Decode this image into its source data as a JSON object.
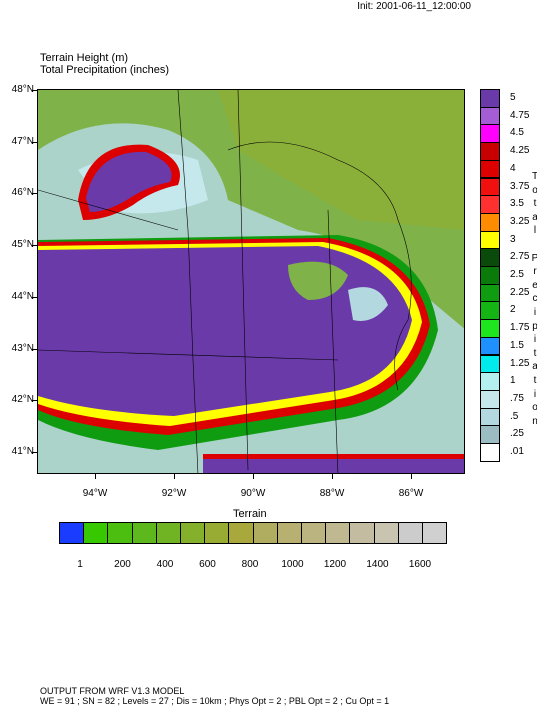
{
  "init_label": "Init: 2001-06-11_12:00:00",
  "titles": {
    "line1": "Terrain Height   (m)",
    "line2": "Total Precipitation (inches)"
  },
  "map": {
    "lat_labels": [
      "48°N",
      "47°N",
      "46°N",
      "45°N",
      "44°N",
      "43°N",
      "42°N",
      "41°N"
    ],
    "lon_labels": [
      "94°W",
      "92°W",
      "90°W",
      "88°W",
      "86°W"
    ]
  },
  "precip_legend": {
    "title": "Total Precipitation",
    "levels": [
      {
        "label": "5",
        "color": "#6a3aa8"
      },
      {
        "label": "4.75",
        "color": "#a45dd4"
      },
      {
        "label": "4.5",
        "color": "#ff00ff"
      },
      {
        "label": "4.25",
        "color": "#c80000"
      },
      {
        "label": "4",
        "color": "#dc0000"
      },
      {
        "label": "3.75",
        "color": "#f01010"
      },
      {
        "label": "3.5",
        "color": "#ff3030"
      },
      {
        "label": "3.25",
        "color": "#ff8c00"
      },
      {
        "label": "3",
        "color": "#ffff00"
      },
      {
        "label": "2.75",
        "color": "#0a4a0a"
      },
      {
        "label": "2.5",
        "color": "#0a7a0a"
      },
      {
        "label": "2.25",
        "color": "#109c10"
      },
      {
        "label": "2",
        "color": "#14b414"
      },
      {
        "label": "1.75",
        "color": "#1ee61e"
      },
      {
        "label": "1.5",
        "color": "#1e90ff"
      },
      {
        "label": "1.25",
        "color": "#00ecec"
      },
      {
        "label": "1",
        "color": "#b4f0f0"
      },
      {
        "label": ".75",
        "color": "#c4e8ec"
      },
      {
        "label": ".5",
        "color": "#b4d8e0"
      },
      {
        "label": ".25",
        "color": "#9cbcc4"
      },
      {
        "label": ".01",
        "color": "#ffffff"
      }
    ]
  },
  "terrain_legend": {
    "title": "Terrain",
    "colors": [
      "#1a3cff",
      "#38c800",
      "#4cbe10",
      "#5cb81c",
      "#70b424",
      "#84b02c",
      "#98ac34",
      "#a8a83c",
      "#b0ac60",
      "#b8b070",
      "#bcb480",
      "#c0b890",
      "#c4bca0",
      "#c8c4b0",
      "#cccccc",
      "#d0d0d0"
    ],
    "labels": [
      "1",
      "200",
      "400",
      "600",
      "800",
      "1000",
      "1200",
      "1400",
      "1600"
    ]
  },
  "footer": {
    "line1": "OUTPUT FROM WRF V1.3 MODEL",
    "line2": "WE = 91 ; SN = 82 ; Levels = 27 ; Dis = 10km ; Phys Opt = 2 ; PBL Opt = 2 ; Cu Opt = 1"
  }
}
